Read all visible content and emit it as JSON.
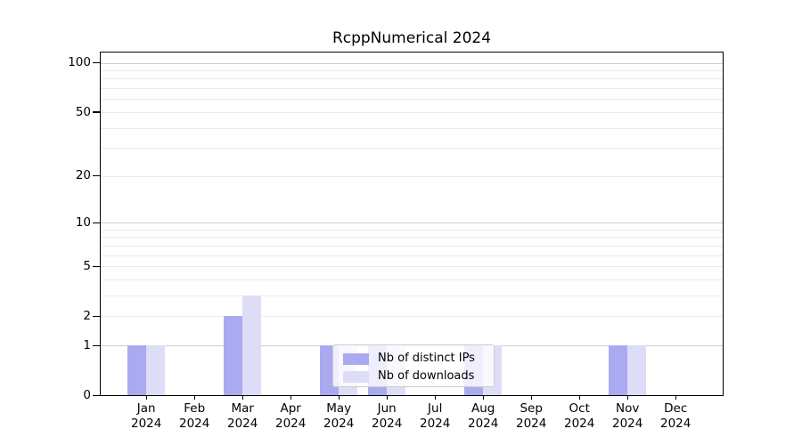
{
  "chart_data": {
    "type": "bar",
    "title": "RcppNumerical 2024",
    "categories": [
      "Jan",
      "Feb",
      "Mar",
      "Apr",
      "May",
      "Jun",
      "Jul",
      "Aug",
      "Sep",
      "Oct",
      "Nov",
      "Dec"
    ],
    "x_tick_year": "2024",
    "series": [
      {
        "name": "Nb of distinct IPs",
        "color": "#aaaaf0",
        "values": [
          1,
          0,
          2,
          0,
          1,
          1,
          0,
          1,
          0,
          0,
          1,
          0
        ]
      },
      {
        "name": "Nb of downloads",
        "color": "#ddddf8",
        "values": [
          1,
          0,
          3,
          0,
          1,
          1,
          0,
          1,
          0,
          0,
          1,
          0
        ]
      }
    ],
    "yscale": "log1p",
    "y_tick_values": [
      0,
      1,
      2,
      5,
      10,
      20,
      50,
      100
    ],
    "y_tick_labels": [
      "0",
      "1",
      "2",
      "5",
      "10",
      "20",
      "50",
      "100"
    ],
    "gridlines": {
      "major": [
        1,
        10,
        100
      ],
      "minor": [
        2,
        3,
        4,
        5,
        6,
        7,
        8,
        9,
        20,
        30,
        40,
        50,
        60,
        70,
        80,
        90
      ]
    },
    "legend_position": "lower center",
    "grid": true,
    "colors": {
      "axis": "#000000",
      "major_grid": "#cfcfcf",
      "minor_grid": "#eaeaea",
      "background": "#ffffff"
    }
  }
}
